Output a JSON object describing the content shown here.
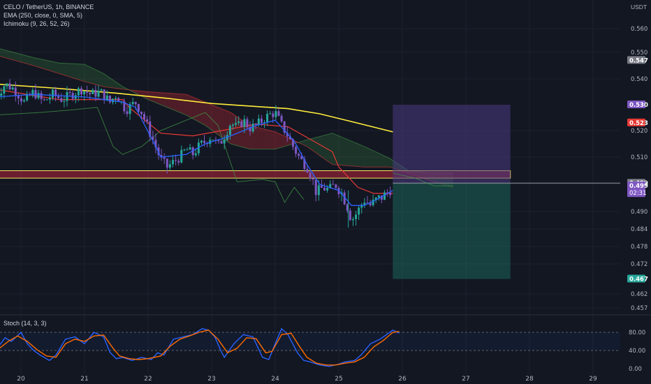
{
  "header": {
    "symbol_line": "CELO / TetherUS, 1h, BINANCE",
    "ema_line": "EMA (250, close, 0, SMA, 5)",
    "ichimoku_line": "Ichimoku (9, 26, 52, 26)",
    "stoch_line": "Stoch (14, 3, 3)",
    "currency": "USDT"
  },
  "colors": {
    "background": "#131722",
    "grid": "#1e222d",
    "bull": "#26a69a",
    "bear": "#7e57c2",
    "ema": "#ffeb3b",
    "kijun": "#e53935",
    "tenkan": "#2962ff",
    "chikou": "#43a047",
    "zone_fill": "#b7253a",
    "zone_border": "#f5e663",
    "target": "#1b5e55",
    "stop": "#4a3b82",
    "stoch_k": "#2962ff",
    "stoch_d": "#ff6d00"
  },
  "chart_data": [
    {
      "type": "candlestick",
      "title": "CELO / TetherUS, 1h, BINANCE",
      "x_ticks": [
        "20",
        "21",
        "22",
        "23",
        "24",
        "25",
        "26",
        "27",
        "28",
        "29"
      ],
      "y_ticks": [
        0.56,
        0.55,
        0.54,
        0.53,
        0.52,
        0.51,
        0.499,
        0.49,
        0.484,
        0.478,
        0.472,
        0.462,
        0.457
      ],
      "y_tick_labels": [
        "0.560",
        "0.550",
        "0.540",
        "",
        "0.520",
        "0.510",
        "",
        "0.490",
        "0.484",
        "0.478",
        "0.472",
        "0.462",
        "0.457"
      ],
      "price_tags": [
        {
          "label": "0.547",
          "value": 0.547,
          "color": "#787b86"
        },
        {
          "label": "0.530",
          "value": 0.53,
          "color": "#7e57c2"
        },
        {
          "label": "0.523",
          "value": 0.523,
          "color": "#e53935"
        },
        {
          "label": "0.499",
          "value": 0.4995,
          "color": "#787b86"
        },
        {
          "label": "0.499",
          "value": 0.4985,
          "color": "#7e57c2",
          "sub": "02:31"
        },
        {
          "label": "0.467",
          "value": 0.467,
          "color": "#26a69a"
        }
      ],
      "close_path": [
        [
          19.6,
          0.533
        ],
        [
          19.75,
          0.538
        ],
        [
          19.9,
          0.536
        ],
        [
          20.05,
          0.531
        ],
        [
          20.2,
          0.535
        ],
        [
          20.35,
          0.531
        ],
        [
          20.5,
          0.534
        ],
        [
          20.65,
          0.532
        ],
        [
          20.8,
          0.534
        ],
        [
          20.95,
          0.536
        ],
        [
          21.1,
          0.534
        ],
        [
          21.25,
          0.535
        ],
        [
          21.4,
          0.531
        ],
        [
          21.5,
          0.534
        ],
        [
          21.65,
          0.528
        ],
        [
          21.8,
          0.531
        ],
        [
          21.9,
          0.527
        ],
        [
          22.0,
          0.521
        ],
        [
          22.1,
          0.515
        ],
        [
          22.2,
          0.509
        ],
        [
          22.3,
          0.506
        ],
        [
          22.4,
          0.508
        ],
        [
          22.5,
          0.51
        ],
        [
          22.6,
          0.513
        ],
        [
          22.7,
          0.511
        ],
        [
          22.8,
          0.514
        ],
        [
          22.9,
          0.516
        ],
        [
          23.0,
          0.518
        ],
        [
          23.1,
          0.514
        ],
        [
          23.2,
          0.518
        ],
        [
          23.3,
          0.523
        ],
        [
          23.4,
          0.521
        ],
        [
          23.5,
          0.524
        ],
        [
          23.6,
          0.521
        ],
        [
          23.7,
          0.522
        ],
        [
          23.8,
          0.524
        ],
        [
          23.9,
          0.526
        ],
        [
          24.0,
          0.527
        ],
        [
          24.1,
          0.522
        ],
        [
          24.2,
          0.518
        ],
        [
          24.3,
          0.513
        ],
        [
          24.4,
          0.509
        ],
        [
          24.5,
          0.506
        ],
        [
          24.6,
          0.5
        ],
        [
          24.65,
          0.496
        ],
        [
          24.75,
          0.498
        ],
        [
          24.85,
          0.497
        ],
        [
          24.95,
          0.499
        ],
        [
          25.05,
          0.496
        ],
        [
          25.15,
          0.491
        ],
        [
          25.2,
          0.487
        ],
        [
          25.3,
          0.49
        ],
        [
          25.4,
          0.494
        ],
        [
          25.5,
          0.492
        ],
        [
          25.6,
          0.494
        ],
        [
          25.7,
          0.495
        ],
        [
          25.8,
          0.497
        ],
        [
          25.85,
          0.499
        ]
      ],
      "ema_250": [
        [
          19.6,
          0.538
        ],
        [
          20.5,
          0.5365
        ],
        [
          21.5,
          0.5345
        ],
        [
          22.3,
          0.5325
        ],
        [
          23.0,
          0.5305
        ],
        [
          23.6,
          0.5295
        ],
        [
          24.2,
          0.5285
        ],
        [
          24.7,
          0.5265
        ],
        [
          25.2,
          0.5235
        ],
        [
          25.85,
          0.5195
        ]
      ],
      "kijun": [
        [
          19.6,
          0.536
        ],
        [
          20.6,
          0.532
        ],
        [
          21.6,
          0.532
        ],
        [
          21.7,
          0.529
        ],
        [
          22.2,
          0.519
        ],
        [
          22.7,
          0.518
        ],
        [
          23.05,
          0.5195
        ],
        [
          23.7,
          0.5225
        ],
        [
          24.2,
          0.5215
        ],
        [
          24.9,
          0.512
        ],
        [
          25.0,
          0.506
        ],
        [
          25.3,
          0.498
        ],
        [
          25.55,
          0.496
        ],
        [
          25.85,
          0.496
        ]
      ],
      "tenkan": [
        [
          19.6,
          0.533
        ],
        [
          20.2,
          0.534
        ],
        [
          21.0,
          0.533
        ],
        [
          21.6,
          0.531
        ],
        [
          21.8,
          0.529
        ],
        [
          22.1,
          0.515
        ],
        [
          22.2,
          0.51
        ],
        [
          22.6,
          0.511
        ],
        [
          22.9,
          0.515
        ],
        [
          23.3,
          0.518
        ],
        [
          23.7,
          0.522
        ],
        [
          24.0,
          0.524
        ],
        [
          24.3,
          0.516
        ],
        [
          24.5,
          0.507
        ],
        [
          24.7,
          0.499
        ],
        [
          25.0,
          0.497
        ],
        [
          25.2,
          0.492
        ],
        [
          25.4,
          0.492
        ],
        [
          25.6,
          0.494
        ],
        [
          25.85,
          0.497
        ]
      ],
      "chikou": [
        [
          19.6,
          0.526
        ],
        [
          20.3,
          0.527
        ],
        [
          20.8,
          0.528
        ],
        [
          21.2,
          0.529
        ],
        [
          21.45,
          0.514
        ],
        [
          21.6,
          0.511
        ],
        [
          21.9,
          0.514
        ],
        [
          22.2,
          0.52
        ],
        [
          22.6,
          0.524
        ],
        [
          22.9,
          0.527
        ],
        [
          23.1,
          0.522
        ],
        [
          23.4,
          0.5
        ],
        [
          23.8,
          0.501
        ],
        [
          24.0,
          0.5
        ],
        [
          24.15,
          0.493
        ],
        [
          24.3,
          0.498
        ],
        [
          24.45,
          0.494
        ]
      ],
      "cloud_a": [
        [
          19.6,
          0.552
        ],
        [
          20.2,
          0.548
        ],
        [
          20.6,
          0.546
        ],
        [
          21.0,
          0.5455
        ],
        [
          21.3,
          0.542
        ],
        [
          21.6,
          0.537
        ],
        [
          22.0,
          0.532
        ],
        [
          22.6,
          0.526
        ],
        [
          22.9,
          0.522
        ],
        [
          23.3,
          0.515
        ],
        [
          23.6,
          0.513
        ],
        [
          24.0,
          0.513
        ],
        [
          24.5,
          0.5165
        ],
        [
          24.9,
          0.519
        ],
        [
          25.4,
          0.514
        ],
        [
          25.8,
          0.5095
        ],
        [
          26.1,
          0.5045
        ],
        [
          26.5,
          0.5035
        ],
        [
          26.8,
          0.5035
        ]
      ],
      "cloud_b": [
        [
          19.6,
          0.549
        ],
        [
          20.2,
          0.545
        ],
        [
          20.6,
          0.542
        ],
        [
          21.0,
          0.539
        ],
        [
          21.3,
          0.537
        ],
        [
          21.6,
          0.536
        ],
        [
          22.0,
          0.535
        ],
        [
          22.6,
          0.534
        ],
        [
          22.9,
          0.531
        ],
        [
          23.3,
          0.527
        ],
        [
          23.6,
          0.522
        ],
        [
          24.0,
          0.5195
        ],
        [
          24.5,
          0.514
        ],
        [
          24.9,
          0.507
        ],
        [
          25.4,
          0.506
        ],
        [
          25.8,
          0.506
        ],
        [
          26.1,
          0.5035
        ],
        [
          26.5,
          0.5
        ],
        [
          26.8,
          0.498
        ]
      ],
      "zone": {
        "y_low": 0.5015,
        "y_high": 0.5045,
        "x_start": 19.6,
        "x_end": 27.7
      },
      "position": {
        "x_start": 25.85,
        "x_end": 27.7,
        "entry": 0.4995,
        "target": 0.467,
        "stop": 0.53
      },
      "projection": [
        [
          25.85,
          0.5035
        ],
        [
          26.2,
          0.5015
        ],
        [
          26.5,
          0.4985
        ],
        [
          26.8,
          0.4985
        ]
      ]
    },
    {
      "type": "line",
      "title": "Stoch (14, 3, 3)",
      "y_ticks": [
        80.0,
        40.0,
        0.0
      ],
      "y_tick_labels": [
        "80.00",
        "40.00",
        "0.00"
      ],
      "ylim": [
        0,
        100
      ],
      "bands": [
        80,
        40
      ],
      "series": [
        {
          "color": "#2962ff",
          "points": [
            [
              19.6,
              40
            ],
            [
              19.75,
              68
            ],
            [
              19.85,
              60
            ],
            [
              20.0,
              80
            ],
            [
              20.1,
              55
            ],
            [
              20.2,
              40
            ],
            [
              20.3,
              30
            ],
            [
              20.45,
              18
            ],
            [
              20.55,
              30
            ],
            [
              20.7,
              65
            ],
            [
              20.85,
              70
            ],
            [
              21.0,
              55
            ],
            [
              21.15,
              80
            ],
            [
              21.3,
              70
            ],
            [
              21.4,
              36
            ],
            [
              21.5,
              22
            ],
            [
              21.6,
              25
            ],
            [
              21.75,
              18
            ],
            [
              21.9,
              25
            ],
            [
              22.05,
              20
            ],
            [
              22.15,
              35
            ],
            [
              22.25,
              30
            ],
            [
              22.4,
              65
            ],
            [
              22.55,
              70
            ],
            [
              22.7,
              75
            ],
            [
              22.85,
              88
            ],
            [
              22.95,
              85
            ],
            [
              23.05,
              70
            ],
            [
              23.15,
              38
            ],
            [
              23.2,
              25
            ],
            [
              23.35,
              55
            ],
            [
              23.5,
              75
            ],
            [
              23.65,
              70
            ],
            [
              23.8,
              25
            ],
            [
              23.9,
              20
            ],
            [
              24.0,
              55
            ],
            [
              24.1,
              88
            ],
            [
              24.2,
              75
            ],
            [
              24.35,
              35
            ],
            [
              24.45,
              18
            ],
            [
              24.55,
              15
            ],
            [
              24.7,
              8
            ],
            [
              24.85,
              5
            ],
            [
              25.0,
              10
            ],
            [
              25.1,
              15
            ],
            [
              25.25,
              18
            ],
            [
              25.35,
              30
            ],
            [
              25.5,
              55
            ],
            [
              25.65,
              65
            ],
            [
              25.75,
              75
            ],
            [
              25.85,
              85
            ],
            [
              25.95,
              78
            ]
          ]
        },
        {
          "color": "#ff6d00",
          "points": [
            [
              19.6,
              38
            ],
            [
              19.8,
              60
            ],
            [
              19.95,
              72
            ],
            [
              20.1,
              60
            ],
            [
              20.25,
              42
            ],
            [
              20.4,
              28
            ],
            [
              20.55,
              25
            ],
            [
              20.7,
              55
            ],
            [
              20.85,
              65
            ],
            [
              21.0,
              60
            ],
            [
              21.15,
              72
            ],
            [
              21.3,
              74
            ],
            [
              21.45,
              45
            ],
            [
              21.55,
              28
            ],
            [
              21.7,
              22
            ],
            [
              21.85,
              20
            ],
            [
              22.0,
              22
            ],
            [
              22.2,
              28
            ],
            [
              22.35,
              50
            ],
            [
              22.5,
              65
            ],
            [
              22.65,
              72
            ],
            [
              22.8,
              80
            ],
            [
              22.95,
              85
            ],
            [
              23.1,
              65
            ],
            [
              23.25,
              35
            ],
            [
              23.4,
              45
            ],
            [
              23.55,
              68
            ],
            [
              23.7,
              66
            ],
            [
              23.85,
              35
            ],
            [
              23.95,
              38
            ],
            [
              24.1,
              75
            ],
            [
              24.25,
              78
            ],
            [
              24.4,
              45
            ],
            [
              24.5,
              25
            ],
            [
              24.65,
              12
            ],
            [
              24.8,
              8
            ],
            [
              24.95,
              8
            ],
            [
              25.1,
              12
            ],
            [
              25.25,
              15
            ],
            [
              25.4,
              25
            ],
            [
              25.55,
              48
            ],
            [
              25.7,
              62
            ],
            [
              25.85,
              80
            ],
            [
              25.95,
              82
            ]
          ]
        }
      ]
    }
  ]
}
